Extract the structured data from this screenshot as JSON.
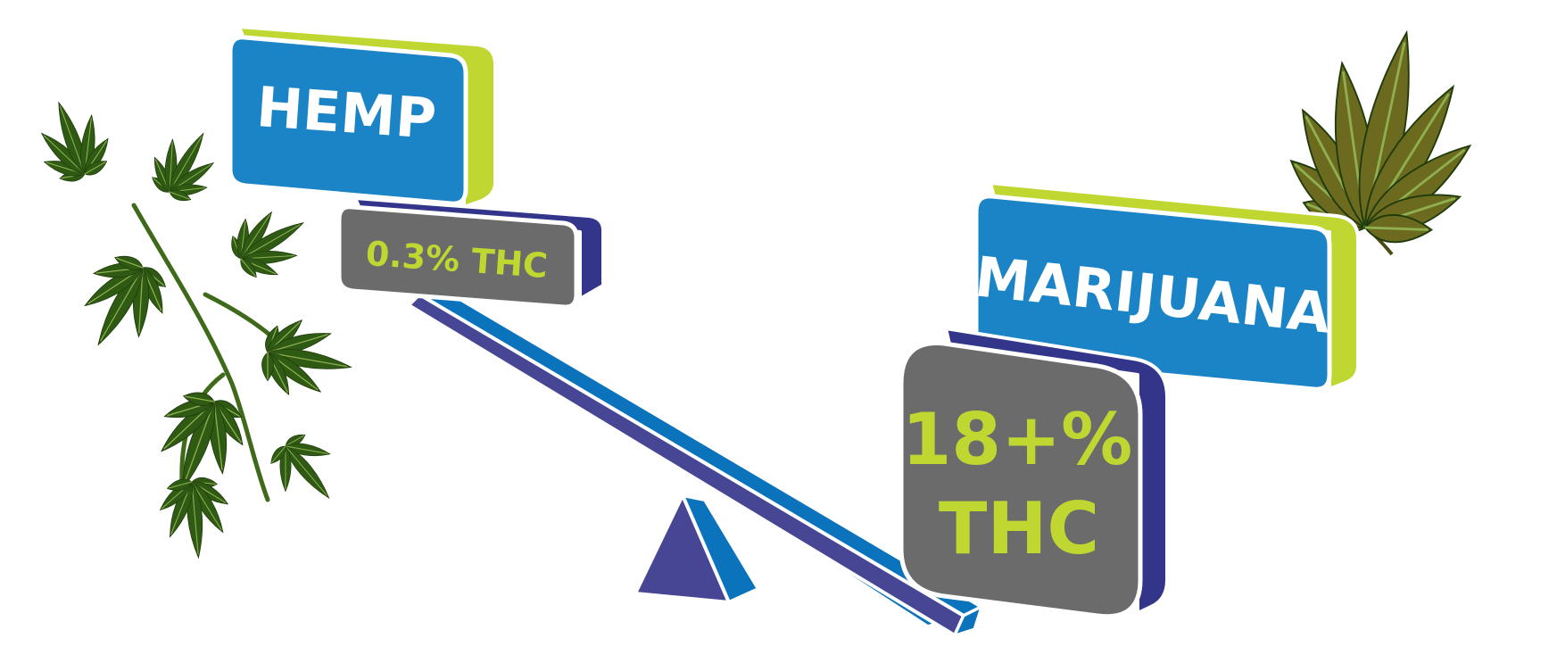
{
  "hemp": {
    "title": "HEMP",
    "thc": "0.3% THC"
  },
  "marijuana": {
    "title": "MARIJUANA",
    "thc_line1": "18+%",
    "thc_line2": "THC"
  },
  "colors": {
    "sign_blue": "#1b84c6",
    "sign_green_edge": "#bfd730",
    "box_gray": "#6b6b6b",
    "box_navy_edge": "#323589",
    "thc_text": "#bfd730",
    "beam_top": "#0a73bb",
    "beam_side": "#464694",
    "leaf_dark": "#2f5a14",
    "leaf_olive": "#6b6a1e"
  },
  "icons": {
    "left": "hemp-plant-icon",
    "right": "marijuana-leaf-icon",
    "fulcrum": "fulcrum-icon"
  }
}
